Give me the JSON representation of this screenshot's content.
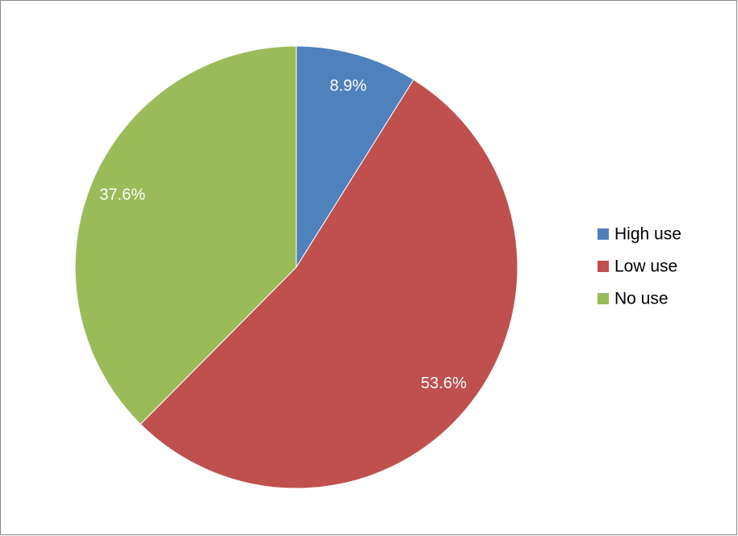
{
  "chart_data": {
    "type": "pie",
    "categories": [
      "High use",
      "Low use",
      "No use"
    ],
    "values": [
      8.9,
      53.6,
      37.6
    ],
    "value_labels": [
      "8.9%",
      "53.6%",
      "37.6%"
    ],
    "colors": [
      "#4f81bd",
      "#c0504d",
      "#9bbb59"
    ],
    "legend": "right"
  }
}
